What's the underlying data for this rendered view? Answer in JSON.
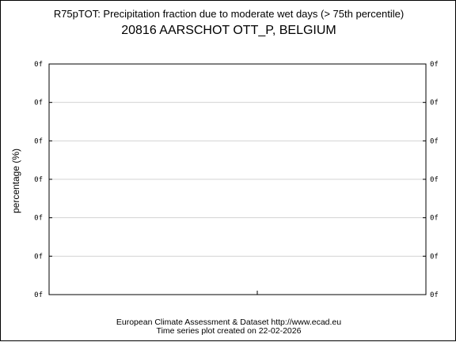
{
  "chart_data": {
    "type": "line",
    "title": "R75pTOT: Precipitation fraction due to moderate wet days (> 75th percentile)",
    "subtitle": "20816 AARSCHOT OTT_P, BELGIUM",
    "ylabel": "percentage (%)",
    "xlabel": "",
    "y_tick_labels": [
      "0f",
      "0f",
      "0f",
      "0f",
      "0f",
      "0f",
      "0f"
    ],
    "series": [],
    "grid": true,
    "legend": "none"
  },
  "footer": {
    "line1": "European Climate Assessment & Dataset  http://www.ecad.eu",
    "line2": "Time series plot created on 22-02-2026"
  },
  "colors": {
    "grid": "#d3d3d3",
    "axes": "#000000",
    "background": "#ffffff"
  }
}
